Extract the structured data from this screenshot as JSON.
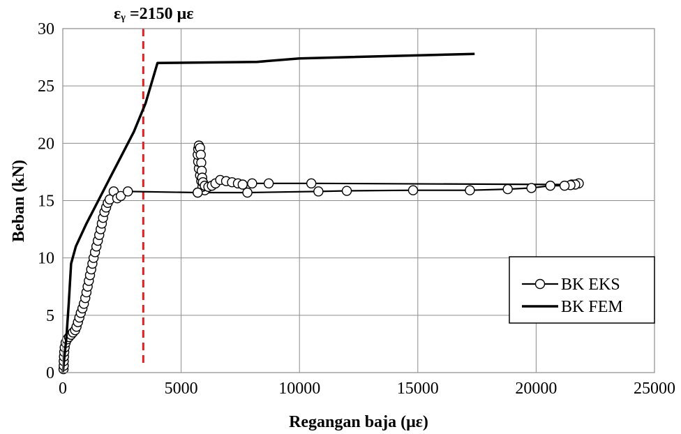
{
  "chart_data": {
    "type": "scatter",
    "xlabel": "Regangan baja (με)",
    "ylabel": "Beban (kN)",
    "xlim": [
      0,
      25000
    ],
    "ylim": [
      0,
      30
    ],
    "xticks": [
      0,
      5000,
      10000,
      15000,
      20000,
      25000
    ],
    "yticks": [
      0,
      5,
      10,
      15,
      20,
      25,
      30
    ],
    "xtick_labels": [
      "0",
      "5000",
      "10000",
      "15000",
      "20000",
      "25000"
    ],
    "ytick_labels": [
      "0",
      "5",
      "10",
      "15",
      "20",
      "25",
      "30"
    ],
    "grid": true,
    "legend_position": "right",
    "annotation": {
      "label": "εᵧ =2150 με",
      "x": 3400,
      "color": "#e02020"
    },
    "series": [
      {
        "name": "BK EKS",
        "style": "line-with-open-circles",
        "color": "#000000",
        "points": [
          [
            30,
            0.3
          ],
          [
            40,
            0.6
          ],
          [
            40,
            1.0
          ],
          [
            50,
            1.4
          ],
          [
            60,
            1.8
          ],
          [
            80,
            2.2
          ],
          [
            120,
            2.6
          ],
          [
            180,
            2.9
          ],
          [
            260,
            3.1
          ],
          [
            350,
            3.3
          ],
          [
            430,
            3.5
          ],
          [
            520,
            3.7
          ],
          [
            580,
            4.0
          ],
          [
            640,
            4.4
          ],
          [
            700,
            4.8
          ],
          [
            760,
            5.2
          ],
          [
            830,
            5.6
          ],
          [
            890,
            6.0
          ],
          [
            950,
            6.5
          ],
          [
            1000,
            7.0
          ],
          [
            1050,
            7.5
          ],
          [
            1100,
            8.0
          ],
          [
            1150,
            8.5
          ],
          [
            1200,
            9.0
          ],
          [
            1250,
            9.5
          ],
          [
            1300,
            10.0
          ],
          [
            1360,
            10.5
          ],
          [
            1420,
            11.0
          ],
          [
            1480,
            11.5
          ],
          [
            1540,
            12.0
          ],
          [
            1600,
            12.5
          ],
          [
            1650,
            13.0
          ],
          [
            1700,
            13.5
          ],
          [
            1760,
            14.0
          ],
          [
            1830,
            14.4
          ],
          [
            1900,
            14.8
          ],
          [
            1980,
            15.1
          ],
          [
            2150,
            15.8
          ],
          [
            2300,
            15.2
          ],
          [
            2450,
            15.4
          ],
          [
            2750,
            15.8
          ],
          [
            5700,
            15.7
          ],
          [
            6000,
            15.9
          ],
          [
            5900,
            16.2
          ],
          [
            5850,
            16.7
          ],
          [
            5800,
            17.2
          ],
          [
            5750,
            17.8
          ],
          [
            5720,
            18.4
          ],
          [
            5700,
            19.0
          ],
          [
            5720,
            19.5
          ],
          [
            5750,
            19.8
          ],
          [
            5800,
            19.6
          ],
          [
            5830,
            19.0
          ],
          [
            5850,
            18.3
          ],
          [
            5870,
            17.6
          ],
          [
            5890,
            17.0
          ],
          [
            5920,
            16.6
          ],
          [
            6000,
            16.3
          ],
          [
            6150,
            16.2
          ],
          [
            6300,
            16.3
          ],
          [
            6450,
            16.5
          ],
          [
            6650,
            16.8
          ],
          [
            6900,
            16.7
          ],
          [
            7150,
            16.6
          ],
          [
            7400,
            16.5
          ],
          [
            7600,
            16.4
          ],
          [
            8000,
            16.5
          ],
          [
            8700,
            16.5
          ],
          [
            10500,
            16.5
          ],
          [
            21500,
            16.4
          ],
          [
            21800,
            16.5
          ],
          [
            21650,
            16.4
          ],
          [
            21450,
            16.35
          ],
          [
            21200,
            16.3
          ],
          [
            20600,
            16.3
          ],
          [
            19800,
            16.1
          ],
          [
            18800,
            16.0
          ],
          [
            17200,
            15.9
          ],
          [
            14800,
            15.9
          ],
          [
            12000,
            15.85
          ],
          [
            10800,
            15.8
          ],
          [
            7800,
            15.7
          ],
          [
            5700,
            15.7
          ]
        ]
      },
      {
        "name": "BK FEM",
        "style": "thick-line",
        "color": "#000000",
        "points": [
          [
            0,
            0
          ],
          [
            150,
            3
          ],
          [
            250,
            6
          ],
          [
            350,
            9.5
          ],
          [
            550,
            11
          ],
          [
            1000,
            13
          ],
          [
            1500,
            15
          ],
          [
            2000,
            17
          ],
          [
            2500,
            19
          ],
          [
            3000,
            21
          ],
          [
            3500,
            23.5
          ],
          [
            4000,
            27
          ],
          [
            8200,
            27.1
          ],
          [
            10000,
            27.4
          ],
          [
            17400,
            27.8
          ]
        ]
      }
    ]
  }
}
